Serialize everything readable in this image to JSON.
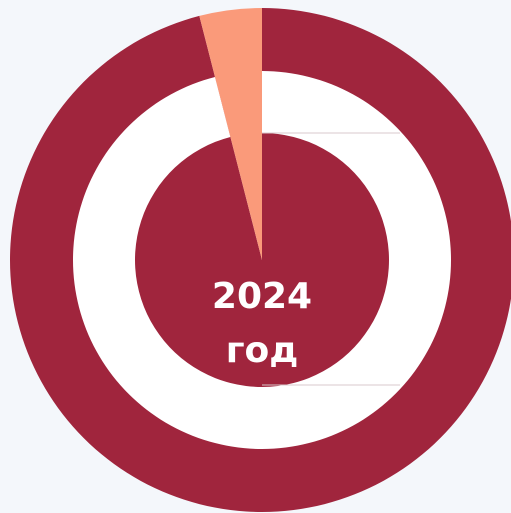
{
  "chart_data": {
    "type": "pie",
    "values": [
      96,
      4
    ],
    "colors": [
      "#a0253d",
      "#fa9a7a"
    ],
    "annotations": [
      "2024",
      "год"
    ]
  }
}
